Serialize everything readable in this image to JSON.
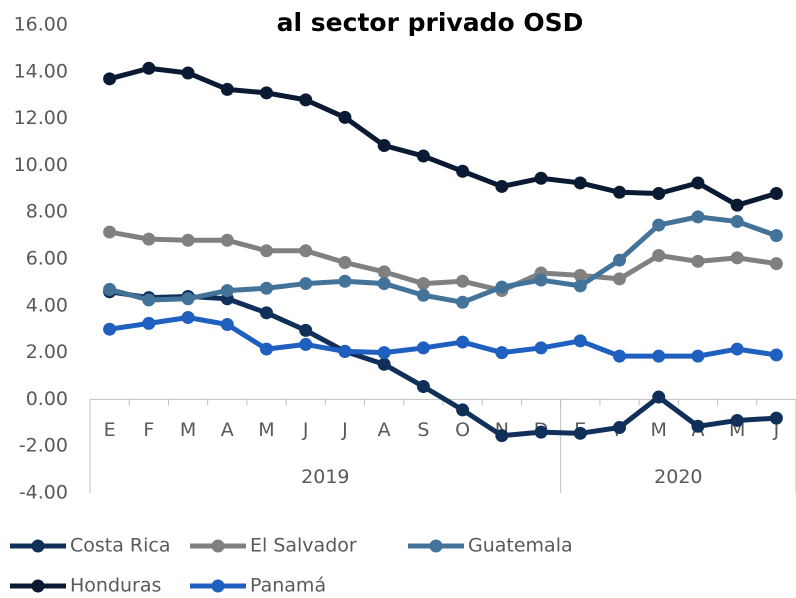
{
  "chart_data": {
    "type": "line",
    "title": "al sector privado OSD",
    "categories": [
      "E",
      "F",
      "M",
      "A",
      "M",
      "J",
      "J",
      "A",
      "S",
      "O",
      "N",
      "D",
      "E",
      "F",
      "M",
      "A",
      "M",
      "J"
    ],
    "x_groups": [
      {
        "label": "2019",
        "size": 12
      },
      {
        "label": "2020",
        "size": 6
      }
    ],
    "series": [
      {
        "name": "Costa Rica",
        "color": "#10305a",
        "values": [
          4.6,
          4.35,
          4.4,
          4.3,
          3.7,
          2.95,
          2.05,
          1.5,
          0.55,
          -0.45,
          -1.55,
          -1.4,
          -1.45,
          -1.2,
          0.1,
          -1.15,
          -0.9,
          -0.8
        ]
      },
      {
        "name": "El Salvador",
        "color": "#808080",
        "values": [
          7.15,
          6.85,
          6.8,
          6.8,
          6.35,
          6.35,
          5.85,
          5.45,
          4.95,
          5.05,
          4.65,
          5.4,
          5.3,
          5.15,
          6.15,
          5.9,
          6.05,
          5.8
        ]
      },
      {
        "name": "Guatemala",
        "color": "#44739a",
        "values": [
          4.7,
          4.25,
          4.3,
          4.65,
          4.75,
          4.95,
          5.05,
          4.95,
          4.45,
          4.15,
          4.8,
          5.1,
          4.85,
          5.95,
          7.45,
          7.8,
          7.6,
          7.0
        ]
      },
      {
        "name": "Honduras",
        "color": "#0a1a33",
        "values": [
          13.7,
          14.15,
          13.95,
          13.25,
          13.1,
          12.8,
          12.05,
          10.85,
          10.4,
          9.75,
          9.1,
          9.45,
          9.25,
          8.85,
          8.8,
          9.25,
          8.3,
          8.8
        ]
      },
      {
        "name": "Panamá",
        "color": "#1f5fbf",
        "values": [
          3.0,
          3.25,
          3.5,
          3.2,
          2.15,
          2.35,
          2.05,
          2.0,
          2.2,
          2.45,
          2.0,
          2.2,
          2.5,
          1.85,
          1.85,
          1.85,
          2.15,
          1.9
        ]
      }
    ],
    "ylim": [
      -4,
      16
    ],
    "yticks": [
      {
        "value": -4,
        "label": "-4.00"
      },
      {
        "value": -2,
        "label": "-2.00"
      },
      {
        "value": 0,
        "label": "0.00"
      },
      {
        "value": 2,
        "label": "2.00"
      },
      {
        "value": 4,
        "label": "4.00"
      },
      {
        "value": 6,
        "label": "6.00"
      },
      {
        "value": 8,
        "label": "8.00"
      },
      {
        "value": 10,
        "label": "10.00"
      },
      {
        "value": 12,
        "label": "12.00"
      },
      {
        "value": 14,
        "label": "14.00"
      },
      {
        "value": 16,
        "label": "16.00"
      }
    ],
    "grid": false
  }
}
